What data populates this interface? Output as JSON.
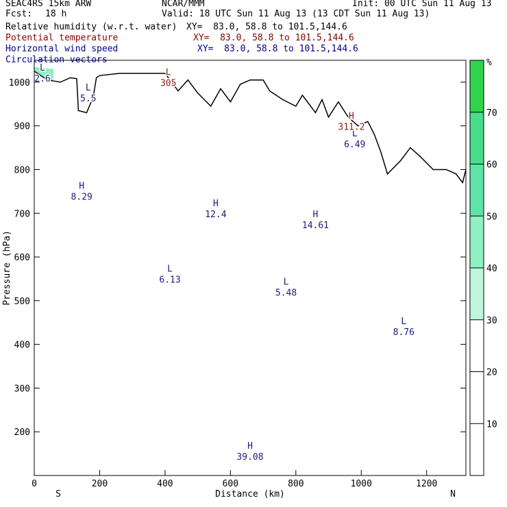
{
  "header": {
    "model": "SEAC4RS 15km ARW",
    "center": "NCAR/MMM",
    "init": "Init: 00 UTC Sun 11 Aug 13",
    "fcst_label": "Fcst:",
    "fcst_value": "18 h",
    "valid": "Valid: 18 UTC Sun 11 Aug 13 (13 CDT Sun 11 Aug 13)"
  },
  "fields": [
    {
      "name": "Relative humidity (w.r.t. water)",
      "xy": "XY=  83.0, 58.8 to 101.5,144.6",
      "color": "#000000"
    },
    {
      "name": "Potential temperature",
      "xy": "XY=  83.0, 58.8 to 101.5,144.6",
      "color": "#8b0000"
    },
    {
      "name": "Horizontal wind speed",
      "xy": "XY=  83.0, 58.8 to 101.5,144.6",
      "color": "#00008b"
    },
    {
      "name": "Circulation vectors",
      "xy": "XY=  83.0, 58.8 to 101.5,144.6",
      "color": "#00008b"
    }
  ],
  "chart_data": {
    "type": "cross-section",
    "xlabel": "Distance (km)",
    "ylabel": "Pressure (hPa)",
    "x_ticks": [
      0,
      200,
      400,
      600,
      800,
      1000,
      1200
    ],
    "y_ticks": [
      200,
      300,
      400,
      500,
      600,
      700,
      800,
      900,
      1000
    ],
    "xlim": [
      0,
      1320
    ],
    "ylim": [
      1050,
      100
    ],
    "x_end_labels": {
      "left": "S",
      "right": "N"
    },
    "colorbar": {
      "unit": "%",
      "ticks": [
        10,
        20,
        30,
        40,
        50,
        60,
        70
      ],
      "range": [
        0,
        80
      ],
      "shaded_from": 30
    },
    "theta_isentropes_K": [
      305,
      310,
      315,
      320,
      325,
      330,
      335,
      340,
      345,
      350,
      355,
      360
    ],
    "wind_speed_contours": [
      10,
      15,
      20,
      25,
      30,
      35
    ],
    "extrema_labels": [
      {
        "type": "H",
        "value": "39.08",
        "x": 660,
        "p": 155
      },
      {
        "type": "L",
        "value": "6.13",
        "x": 415,
        "p": 560
      },
      {
        "type": "L",
        "value": "5.48",
        "x": 770,
        "p": 530
      },
      {
        "type": "L",
        "value": "8.76",
        "x": 1130,
        "p": 440
      },
      {
        "type": "H",
        "value": "14.61",
        "x": 860,
        "p": 685
      },
      {
        "type": "H",
        "value": "12.4",
        "x": 555,
        "p": 710
      },
      {
        "type": "H",
        "value": "8.29",
        "x": 145,
        "p": 750
      },
      {
        "type": "L",
        "value": "6.49",
        "x": 980,
        "p": 870
      },
      {
        "type": "H",
        "value": "311.2",
        "x": 970,
        "p": 910
      },
      {
        "type": "L",
        "value": "2.6",
        "x": 25,
        "p": 1020
      },
      {
        "type": "L",
        "value": "5.5",
        "x": 165,
        "p": 975
      },
      {
        "type": "L",
        "value": "305",
        "x": 410,
        "p": 1010
      }
    ]
  }
}
